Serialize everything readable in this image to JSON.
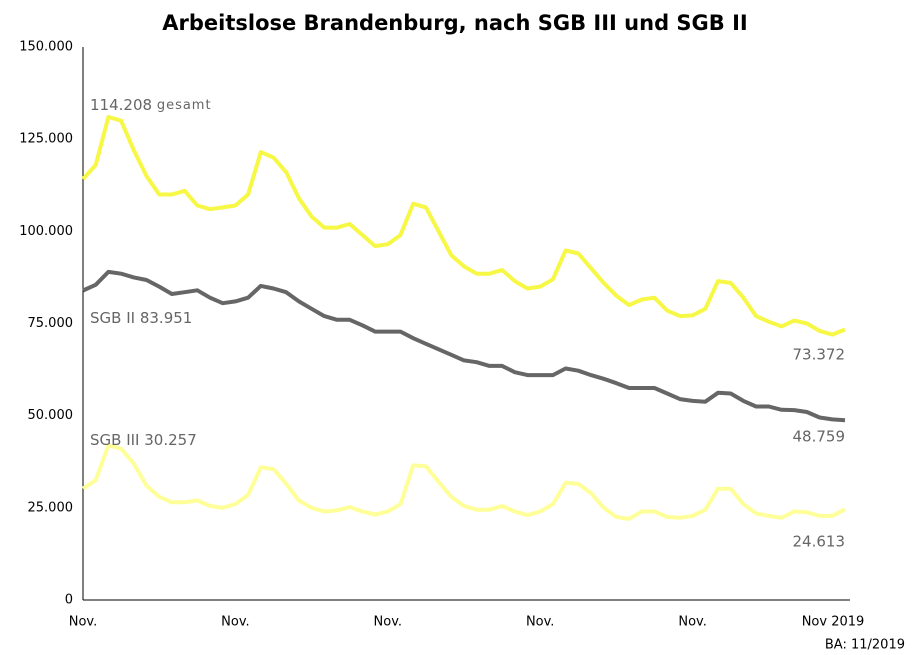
{
  "chart_data": {
    "type": "line",
    "title": "Arbeitslose Brandenburg, nach SGB III und SGB II",
    "source": "BA: 11/2019",
    "categories": [
      "Nov.",
      null,
      null,
      null,
      null,
      null,
      null,
      null,
      null,
      null,
      null,
      null,
      "Nov.",
      null,
      null,
      null,
      null,
      null,
      null,
      null,
      null,
      null,
      null,
      null,
      "Nov.",
      null,
      null,
      null,
      null,
      null,
      null,
      null,
      null,
      null,
      null,
      null,
      "Nov.",
      null,
      null,
      null,
      null,
      null,
      null,
      null,
      null,
      null,
      null,
      null,
      "Nov.",
      null,
      null,
      null,
      null,
      null,
      null,
      null,
      null,
      null,
      null,
      null,
      "Nov 2019"
    ],
    "ylim": [
      0,
      150000
    ],
    "yticks": [
      0,
      {
        "value": 25000,
        "label": "25.000"
      },
      {
        "value": 50000,
        "label": "50.000"
      },
      {
        "value": 75000,
        "label": "75.000"
      },
      {
        "value": 100000,
        "label": "100.000"
      },
      {
        "value": 125000,
        "label": "125.000"
      },
      {
        "value": 150000,
        "label": "150.000"
      }
    ],
    "grid": false,
    "series": [
      {
        "name": "gesamt",
        "color": "#f7f745",
        "values": [
          114208,
          118000,
          131000,
          130000,
          122000,
          115000,
          110000,
          110000,
          111000,
          107000,
          106000,
          106500,
          107000,
          110000,
          121500,
          120000,
          116000,
          109000,
          104000,
          101000,
          101000,
          102000,
          99000,
          96000,
          96500,
          99000,
          107500,
          106500,
          100000,
          93500,
          90500,
          88500,
          88500,
          89500,
          86500,
          84500,
          85000,
          87000,
          94800,
          94000,
          90000,
          86000,
          82500,
          80000,
          81500,
          82000,
          78500,
          77000,
          77200,
          79000,
          86500,
          86000,
          82000,
          77000,
          75500,
          74200,
          75800,
          75000,
          73000,
          72000,
          73372
        ],
        "value_labels": [
          "114.208",
          null,
          null,
          null,
          null,
          null,
          null,
          null,
          null,
          null,
          null,
          null,
          null,
          null,
          null,
          null,
          null,
          null,
          null,
          null,
          null,
          null,
          null,
          null,
          null,
          null,
          null,
          null,
          null,
          null,
          null,
          null,
          null,
          null,
          null,
          null,
          null,
          null,
          null,
          null,
          null,
          null,
          null,
          null,
          null,
          null,
          null,
          null,
          null,
          null,
          null,
          null,
          null,
          null,
          null,
          null,
          null,
          null,
          null,
          null,
          "73.372"
        ]
      },
      {
        "name": "SGB II",
        "color": "#666666",
        "values": [
          83951,
          85500,
          89000,
          88500,
          87500,
          86800,
          85000,
          83000,
          83500,
          84000,
          82000,
          80500,
          81000,
          82000,
          85200,
          84500,
          83500,
          81000,
          79000,
          77000,
          76000,
          76000,
          74500,
          72800,
          72800,
          72800,
          71000,
          69500,
          68000,
          66500,
          65000,
          64500,
          63500,
          63500,
          61800,
          61000,
          61000,
          61000,
          62800,
          62200,
          61000,
          60000,
          58800,
          57500,
          57500,
          57500,
          56000,
          54500,
          54000,
          53800,
          56200,
          56000,
          54000,
          52500,
          52500,
          51600,
          51500,
          51000,
          49500,
          49000,
          48759
        ],
        "value_labels": [
          "83.951",
          null,
          null,
          null,
          null,
          null,
          null,
          null,
          null,
          null,
          null,
          null,
          null,
          null,
          null,
          null,
          null,
          null,
          null,
          null,
          null,
          null,
          null,
          null,
          null,
          null,
          null,
          null,
          null,
          null,
          null,
          null,
          null,
          null,
          null,
          null,
          null,
          null,
          null,
          null,
          null,
          null,
          null,
          null,
          null,
          null,
          null,
          null,
          null,
          null,
          null,
          null,
          null,
          null,
          null,
          null,
          null,
          null,
          null,
          null,
          "48.759"
        ]
      },
      {
        "name": "SGB III",
        "color": "#ffff99",
        "values": [
          30257,
          32500,
          42000,
          41000,
          37000,
          31000,
          28000,
          26500,
          26500,
          27000,
          25500,
          25000,
          26000,
          28500,
          36000,
          35500,
          31500,
          27000,
          25000,
          24000,
          24300,
          25200,
          24000,
          23200,
          24000,
          26000,
          36500,
          36300,
          32000,
          28000,
          25500,
          24500,
          24500,
          25500,
          24000,
          23000,
          24000,
          26000,
          31800,
          31500,
          29000,
          25000,
          22500,
          22000,
          24000,
          24000,
          22500,
          22300,
          22800,
          24500,
          30200,
          30200,
          26000,
          23500,
          22800,
          22300,
          24000,
          23800,
          22800,
          22800,
          24613
        ],
        "value_labels": [
          "30.257",
          null,
          null,
          null,
          null,
          null,
          null,
          null,
          null,
          null,
          null,
          null,
          null,
          null,
          null,
          null,
          null,
          null,
          null,
          null,
          null,
          null,
          null,
          null,
          null,
          null,
          null,
          null,
          null,
          null,
          null,
          null,
          null,
          null,
          null,
          null,
          null,
          null,
          null,
          null,
          null,
          null,
          null,
          null,
          null,
          null,
          null,
          null,
          null,
          null,
          null,
          null,
          null,
          null,
          null,
          null,
          null,
          null,
          null,
          null,
          "24.613"
        ]
      }
    ]
  }
}
